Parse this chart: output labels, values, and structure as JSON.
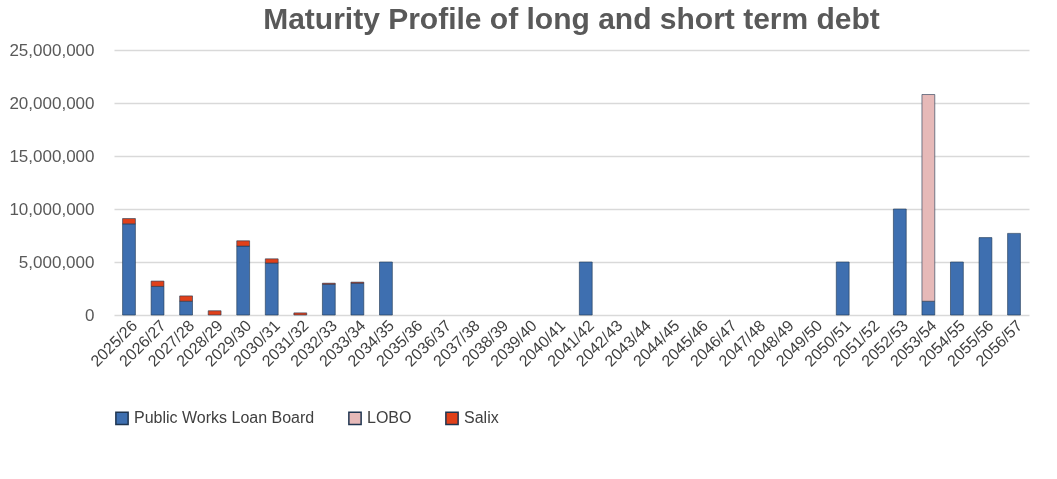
{
  "chart_data": {
    "type": "bar",
    "stacked": true,
    "title": "Maturity Profile of long and short term debt",
    "categories": [
      "2025/26",
      "2026/27",
      "2027/28",
      "2028/29",
      "2029/30",
      "2030/31",
      "2031/32",
      "2032/33",
      "2033/34",
      "2034/35",
      "2035/36",
      "2036/37",
      "2037/38",
      "2038/39",
      "2039/40",
      "2040/41",
      "2041/42",
      "2042/43",
      "2043/44",
      "2044/45",
      "2045/46",
      "2046/47",
      "2047/48",
      "2048/49",
      "2049/50",
      "2050/51",
      "2051/52",
      "2052/53",
      "2053/54",
      "2054/55",
      "2055/56",
      "2056/57"
    ],
    "series": [
      {
        "name": "Public Works Loan Board",
        "color": "#3e6fb0",
        "values": [
          8600000,
          2700000,
          1300000,
          null,
          6500000,
          4900000,
          null,
          2900000,
          3000000,
          5000000,
          null,
          null,
          null,
          null,
          null,
          null,
          5000000,
          null,
          null,
          null,
          null,
          null,
          null,
          null,
          null,
          5000000,
          null,
          10000000,
          1300000,
          5000000,
          7300000,
          7700000
        ]
      },
      {
        "name": "LOBO",
        "color": "#e6b9b8",
        "values": [
          null,
          null,
          null,
          null,
          null,
          null,
          null,
          null,
          null,
          null,
          null,
          null,
          null,
          null,
          null,
          null,
          null,
          null,
          null,
          null,
          null,
          null,
          null,
          null,
          null,
          null,
          null,
          null,
          19500000,
          null,
          null,
          null
        ]
      },
      {
        "name": "Salix",
        "color": "#e0401a",
        "values": [
          500000,
          500000,
          500000,
          400000,
          500000,
          400000,
          200000,
          100000,
          100000,
          null,
          null,
          null,
          null,
          null,
          null,
          null,
          null,
          null,
          null,
          null,
          null,
          null,
          null,
          null,
          null,
          null,
          null,
          null,
          null,
          null,
          null,
          null
        ]
      }
    ],
    "ylim": [
      0,
      25000000
    ],
    "yticks": [
      0,
      {
        "value": 5000000,
        "label": "5,000,000"
      },
      {
        "value": 10000000,
        "label": "10,000,000"
      },
      {
        "value": 15000000,
        "label": "15,000,000"
      },
      {
        "value": 20000000,
        "label": "20,000,000"
      },
      {
        "value": 25000000,
        "label": "25,000,000"
      }
    ],
    "grid": "y",
    "legend": "bottom"
  }
}
